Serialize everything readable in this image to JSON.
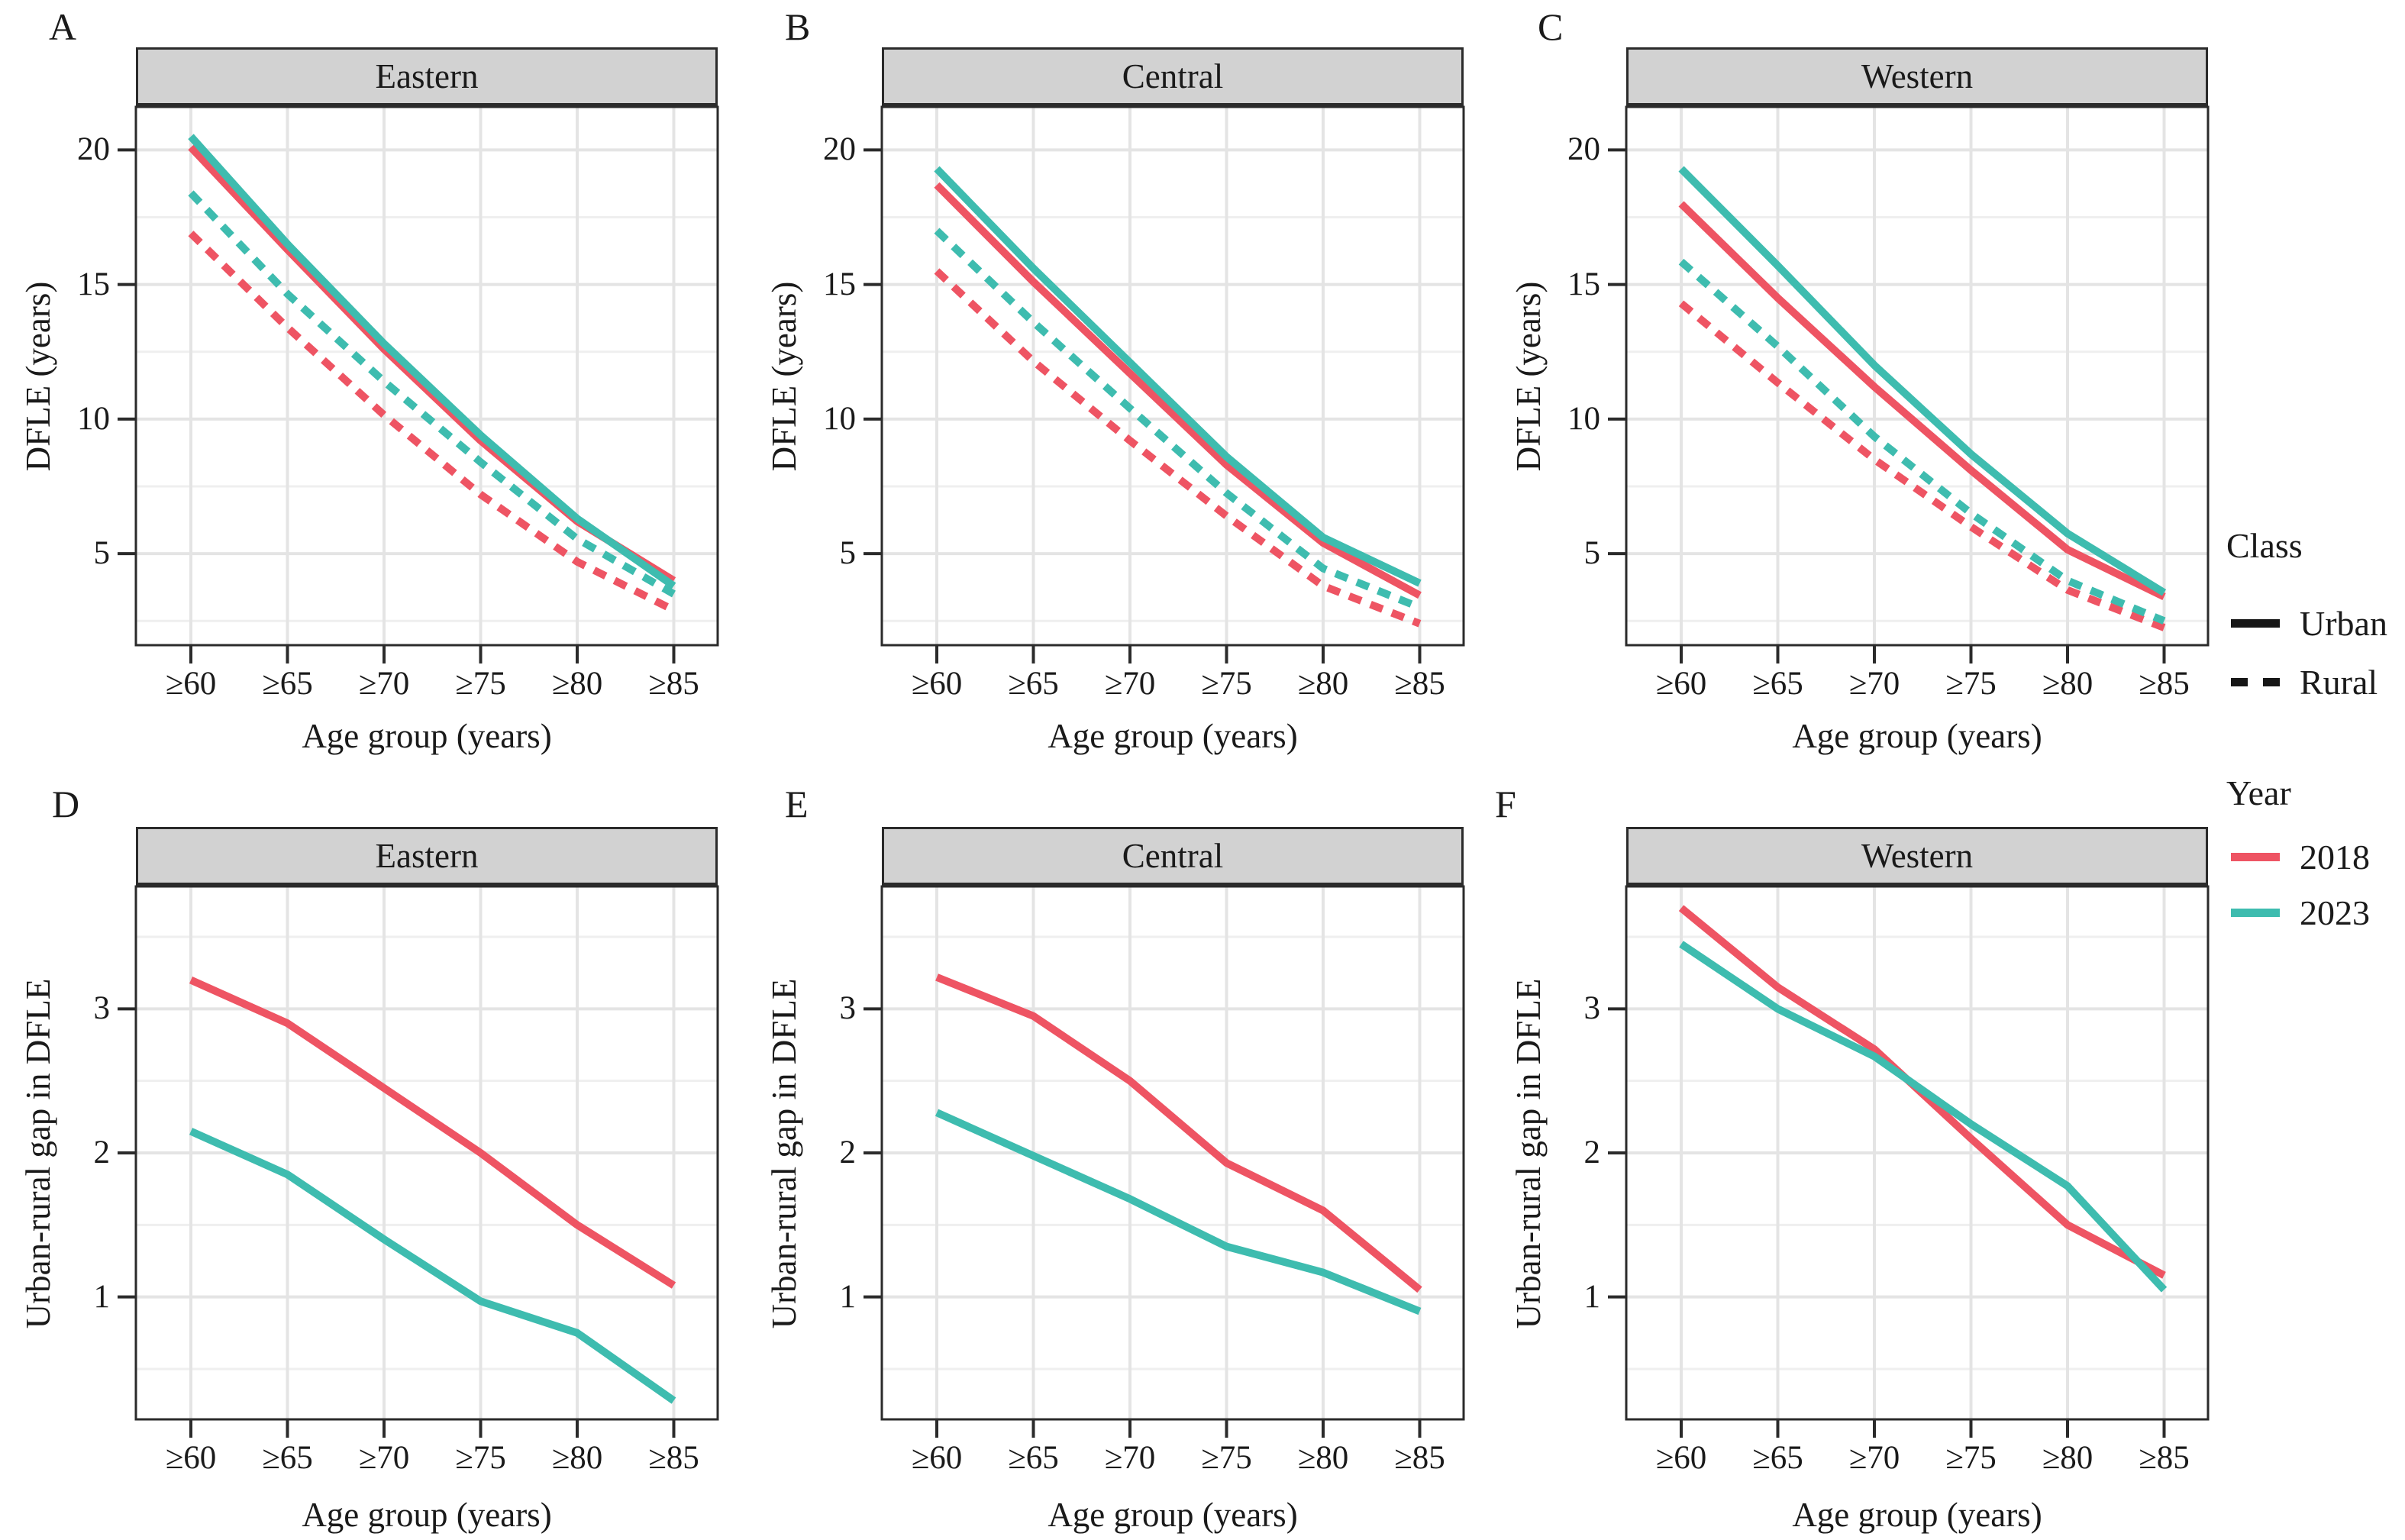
{
  "figure": {
    "background": "#ffffff",
    "strip_fill": "#d2d2d2",
    "border_color": "#2b2b2b",
    "grid_major_color": "#e4e4e4",
    "grid_minor_color": "#efefef",
    "palette": {
      "year_2018": "#ee5463",
      "year_2023": "#3ebcaf",
      "legend_key_black": "#161616"
    }
  },
  "legend": {
    "class_group": {
      "title": "Class",
      "items": [
        {
          "label": "Urban",
          "line_style": "solid"
        },
        {
          "label": "Rural",
          "line_style": "dashed"
        }
      ]
    },
    "year_group": {
      "title": "Year",
      "items": [
        {
          "label": "2018",
          "color": "#ee5463"
        },
        {
          "label": "2023",
          "color": "#3ebcaf"
        }
      ]
    }
  },
  "chart_data": [
    {
      "type": "line",
      "panel_label": "A",
      "title": "Eastern",
      "xlabel": "Age group (years)",
      "ylabel": "DFLE (years)",
      "categories": [
        "≥60",
        "≥65",
        "≥70",
        "≥75",
        "≥80",
        "≥85"
      ],
      "ylim": [
        1.6,
        21.6
      ],
      "yticks": [
        5,
        10,
        15,
        20
      ],
      "yticks_minor": [
        2.5,
        7.5,
        12.5,
        17.5
      ],
      "grid": true,
      "legend_position": "right",
      "series": [
        {
          "name": "Rural 2018",
          "class": "Rural",
          "year": "2018",
          "dash": true,
          "color": "#ee5463",
          "values": [
            16.9,
            13.4,
            10.15,
            7.2,
            4.7,
            2.9
          ]
        },
        {
          "name": "Rural 2023",
          "class": "Rural",
          "year": "2023",
          "dash": true,
          "color": "#3ebcaf",
          "values": [
            18.4,
            14.65,
            11.4,
            8.4,
            5.55,
            3.5
          ]
        },
        {
          "name": "Urban 2018",
          "class": "Urban",
          "year": "2018",
          "dash": false,
          "color": "#ee5463",
          "values": [
            20.1,
            16.3,
            12.6,
            9.2,
            6.2,
            4.0
          ]
        },
        {
          "name": "Urban 2023",
          "class": "Urban",
          "year": "2023",
          "dash": false,
          "color": "#3ebcaf",
          "values": [
            20.5,
            16.5,
            12.8,
            9.4,
            6.3,
            3.8
          ]
        }
      ]
    },
    {
      "type": "line",
      "panel_label": "B",
      "title": "Central",
      "xlabel": "Age group (years)",
      "ylabel": "DFLE (years)",
      "categories": [
        "≥60",
        "≥65",
        "≥70",
        "≥75",
        "≥80",
        "≥85"
      ],
      "ylim": [
        1.6,
        21.6
      ],
      "yticks": [
        5,
        10,
        15,
        20
      ],
      "yticks_minor": [
        2.5,
        7.5,
        12.5,
        17.5
      ],
      "grid": true,
      "series": [
        {
          "name": "Rural 2018",
          "class": "Rural",
          "year": "2018",
          "dash": true,
          "color": "#ee5463",
          "values": [
            15.5,
            12.15,
            9.2,
            6.4,
            3.8,
            2.4
          ]
        },
        {
          "name": "Rural 2023",
          "class": "Rural",
          "year": "2023",
          "dash": true,
          "color": "#3ebcaf",
          "values": [
            17.0,
            13.6,
            10.4,
            7.25,
            4.45,
            3.0
          ]
        },
        {
          "name": "Urban 2018",
          "class": "Urban",
          "year": "2018",
          "dash": false,
          "color": "#ee5463",
          "values": [
            18.7,
            15.1,
            11.7,
            8.3,
            5.4,
            3.45
          ]
        },
        {
          "name": "Urban 2023",
          "class": "Urban",
          "year": "2023",
          "dash": false,
          "color": "#3ebcaf",
          "values": [
            19.3,
            15.6,
            12.1,
            8.6,
            5.6,
            3.9
          ]
        }
      ]
    },
    {
      "type": "line",
      "panel_label": "C",
      "title": "Western",
      "xlabel": "Age group (years)",
      "ylabel": "DFLE (years)",
      "categories": [
        "≥60",
        "≥65",
        "≥70",
        "≥75",
        "≥80",
        "≥85"
      ],
      "ylim": [
        1.6,
        21.6
      ],
      "yticks": [
        5,
        10,
        15,
        20
      ],
      "yticks_minor": [
        2.5,
        7.5,
        12.5,
        17.5
      ],
      "grid": true,
      "series": [
        {
          "name": "Rural 2018",
          "class": "Rural",
          "year": "2018",
          "dash": true,
          "color": "#ee5463",
          "values": [
            14.3,
            11.35,
            8.5,
            6.0,
            3.65,
            2.25
          ]
        },
        {
          "name": "Rural 2023",
          "class": "Rural",
          "year": "2023",
          "dash": true,
          "color": "#3ebcaf",
          "values": [
            15.85,
            12.7,
            9.35,
            6.5,
            4.0,
            2.5
          ]
        },
        {
          "name": "Urban 2018",
          "class": "Urban",
          "year": "2018",
          "dash": false,
          "color": "#ee5463",
          "values": [
            18.0,
            14.5,
            11.2,
            8.1,
            5.15,
            3.4
          ]
        },
        {
          "name": "Urban 2023",
          "class": "Urban",
          "year": "2023",
          "dash": false,
          "color": "#3ebcaf",
          "values": [
            19.3,
            15.7,
            12.0,
            8.7,
            5.75,
            3.55
          ]
        }
      ]
    },
    {
      "type": "line",
      "panel_label": "D",
      "title": "Eastern",
      "xlabel": "Age group (years)",
      "ylabel": "Urban-rural gap in DFLE",
      "categories": [
        "≥60",
        "≥65",
        "≥70",
        "≥75",
        "≥80",
        "≥85"
      ],
      "ylim": [
        0.15,
        3.85
      ],
      "yticks": [
        1,
        2,
        3
      ],
      "yticks_minor": [
        0.5,
        1.5,
        2.5,
        3.5
      ],
      "grid": true,
      "series": [
        {
          "name": "2018",
          "year": "2018",
          "dash": false,
          "color": "#ee5463",
          "values": [
            3.2,
            2.9,
            2.45,
            2.0,
            1.5,
            1.08
          ]
        },
        {
          "name": "2023",
          "year": "2023",
          "dash": false,
          "color": "#3ebcaf",
          "values": [
            2.15,
            1.85,
            1.4,
            0.97,
            0.75,
            0.28
          ]
        }
      ]
    },
    {
      "type": "line",
      "panel_label": "E",
      "title": "Central",
      "xlabel": "Age group (years)",
      "ylabel": "Urban-rural gap in DFLE",
      "categories": [
        "≥60",
        "≥65",
        "≥70",
        "≥75",
        "≥80",
        "≥85"
      ],
      "ylim": [
        0.15,
        3.85
      ],
      "yticks": [
        1,
        2,
        3
      ],
      "yticks_minor": [
        0.5,
        1.5,
        2.5,
        3.5
      ],
      "grid": true,
      "series": [
        {
          "name": "2018",
          "year": "2018",
          "dash": false,
          "color": "#ee5463",
          "values": [
            3.22,
            2.95,
            2.5,
            1.93,
            1.6,
            1.05
          ]
        },
        {
          "name": "2023",
          "year": "2023",
          "dash": false,
          "color": "#3ebcaf",
          "values": [
            2.28,
            1.98,
            1.68,
            1.35,
            1.17,
            0.9
          ]
        }
      ]
    },
    {
      "type": "line",
      "panel_label": "F",
      "title": "Western",
      "xlabel": "Age group (years)",
      "ylabel": "Urban-rural gap in DFLE",
      "categories": [
        "≥60",
        "≥65",
        "≥70",
        "≥75",
        "≥80",
        "≥85"
      ],
      "ylim": [
        0.15,
        3.85
      ],
      "yticks": [
        1,
        2,
        3
      ],
      "yticks_minor": [
        0.5,
        1.5,
        2.5,
        3.5
      ],
      "grid": true,
      "series": [
        {
          "name": "2018",
          "year": "2018",
          "dash": false,
          "color": "#ee5463",
          "values": [
            3.7,
            3.15,
            2.72,
            2.1,
            1.5,
            1.15
          ]
        },
        {
          "name": "2023",
          "year": "2023",
          "dash": false,
          "color": "#3ebcaf",
          "values": [
            3.45,
            3.0,
            2.67,
            2.2,
            1.77,
            1.05
          ]
        }
      ]
    }
  ]
}
